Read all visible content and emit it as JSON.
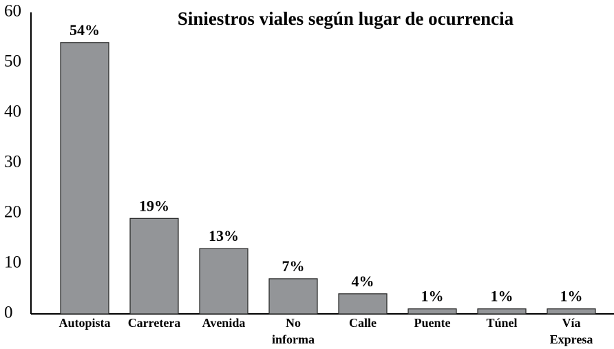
{
  "chart_data": {
    "type": "bar",
    "title": "Siniestros viales según lugar de ocurrencia",
    "categories": [
      "Autopista",
      "Carretera",
      "Avenida",
      "No informa",
      "Calle",
      "Puente",
      "Túnel",
      "Vía Expresa"
    ],
    "values": [
      54,
      19,
      13,
      7,
      4,
      1,
      1,
      1
    ],
    "value_labels": [
      "54%",
      "19%",
      "13%",
      "7%",
      "4%",
      "1%",
      "1%",
      "1%"
    ],
    "color": "#939598",
    "ylim": [
      0,
      60
    ],
    "yticks": [
      0,
      10,
      20,
      30,
      40,
      50,
      60
    ],
    "grid": false
  }
}
